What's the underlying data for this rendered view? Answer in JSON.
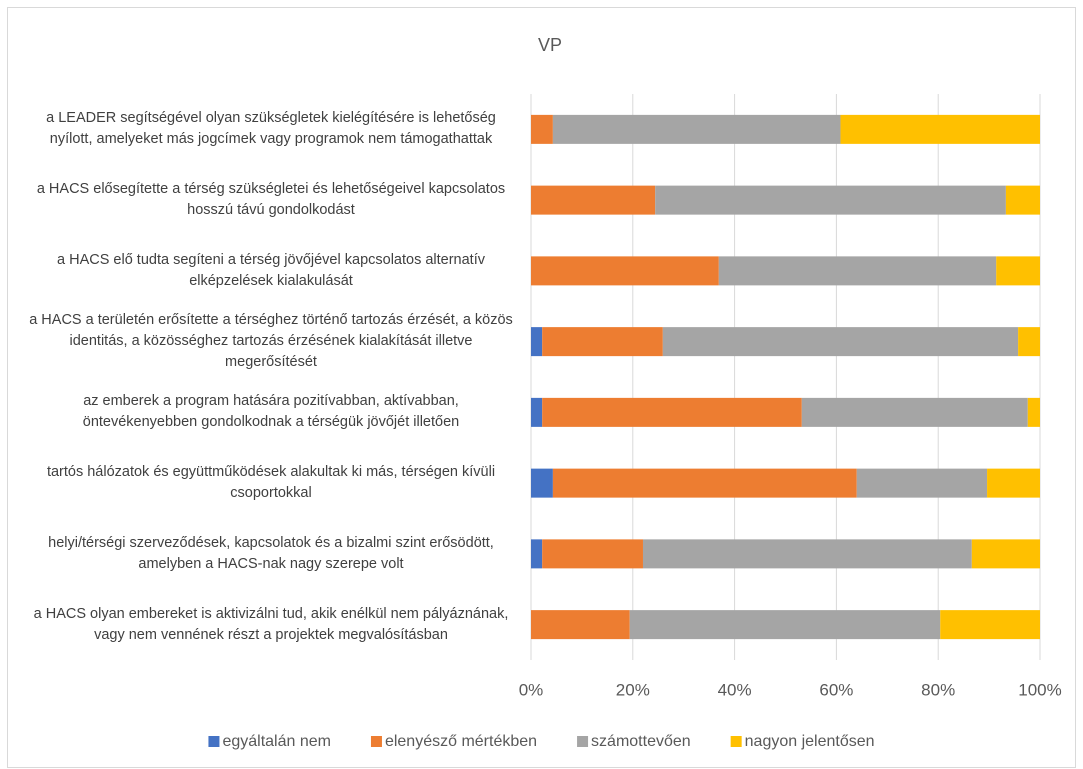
{
  "chart_data": {
    "type": "stacked_barh",
    "title": "VP",
    "categories": [
      "a LEADER segítségével olyan szükségletek kielégítésére is lehetőség nyílott, amelyeket más jogcímek vagy programok nem támogathattak",
      "a HACS elősegítette a térség szükségletei és lehetőségeivel kapcsolatos hosszú távú gondolkodást",
      "a HACS elő tudta segíteni a térség jövőjével kapcsolatos alternatív elképzelések kialakulását",
      "a HACS a területén erősítette a térséghez történő tartozás érzését, a közös identitás, a közösséghez tartozás érzésének kialakítását illetve megerősítését",
      "az emberek a program hatására pozitívabban, aktívabban, öntevékenyebben gondolkodnak a térségük jövőjét illetően",
      "tartós hálózatok és együttműködések alakultak ki más, térségen kívüli csoportokkal",
      "helyi/térségi szerveződések, kapcsolatok és a bizalmi szint erősödött, amelyben a HACS-nak nagy szerepe volt",
      "a HACS olyan embereket is aktivizálni tud, akik enélkül nem pályáznának, vagy nem vennének részt a projektek megvalósításban"
    ],
    "series": [
      {
        "name": "egyáltalán nem",
        "color": "#4472c4",
        "values": [
          0,
          0,
          0,
          2.2,
          2.2,
          4.3,
          2.2,
          0
        ]
      },
      {
        "name": "elenyésző mértékben",
        "color": "#ed7d31",
        "values": [
          4.3,
          24.4,
          36.9,
          23.7,
          51.0,
          59.7,
          19.8,
          19.4
        ]
      },
      {
        "name": "számottevően",
        "color": "#a5a5a5",
        "values": [
          56.5,
          68.9,
          54.5,
          69.8,
          44.4,
          25.6,
          64.6,
          61.0
        ]
      },
      {
        "name": "nagyon jelentősen",
        "color": "#ffc000",
        "values": [
          39.2,
          6.7,
          8.6,
          4.3,
          2.4,
          10.4,
          13.4,
          19.6
        ]
      }
    ],
    "xlim": [
      0,
      100
    ],
    "xticks": [
      {
        "value": 0,
        "label": "0%"
      },
      {
        "value": 20,
        "label": "20%"
      },
      {
        "value": 40,
        "label": "40%"
      },
      {
        "value": 60,
        "label": "60%"
      },
      {
        "value": 80,
        "label": "80%"
      },
      {
        "value": 100,
        "label": "100%"
      }
    ],
    "grid": true,
    "legend": "bottom"
  }
}
